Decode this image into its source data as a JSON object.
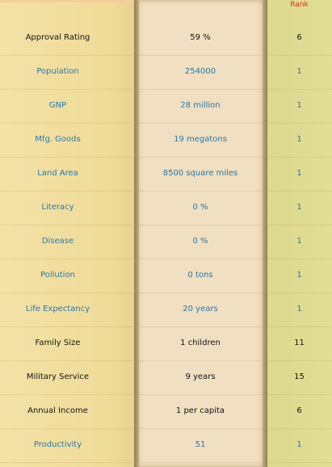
{
  "header": {
    "rank_label": "Rank"
  },
  "colors": {
    "label_column": "#efdb98",
    "value_column": "#f0dfc0",
    "rank_column": "#dcd98e",
    "highlight_text": "#141414",
    "normal_text": "#2a78a8",
    "rank_header": "#e02a10"
  },
  "rows": [
    {
      "label": "Approval Rating",
      "value": "59 %",
      "rank": "6",
      "style": "black"
    },
    {
      "label": "Population",
      "value": "254000",
      "rank": "1",
      "style": "blue"
    },
    {
      "label": "GNP",
      "value": "28 million",
      "rank": "1",
      "style": "blue"
    },
    {
      "label": "Mfg. Goods",
      "value": "19 megatons",
      "rank": "1",
      "style": "blue"
    },
    {
      "label": "Land Area",
      "value": "8500 square miles",
      "rank": "1",
      "style": "blue"
    },
    {
      "label": "Literacy",
      "value": "0 %",
      "rank": "1",
      "style": "blue"
    },
    {
      "label": "Disease",
      "value": "0 %",
      "rank": "1",
      "style": "blue"
    },
    {
      "label": "Pollution",
      "value": "0 tons",
      "rank": "1",
      "style": "blue"
    },
    {
      "label": "Life Expectancy",
      "value": "20 years",
      "rank": "1",
      "style": "blue"
    },
    {
      "label": "Family Size",
      "value": "1 children",
      "rank": "11",
      "style": "black"
    },
    {
      "label": "Military Service",
      "value": "9 years",
      "rank": "15",
      "style": "black"
    },
    {
      "label": "Annual Income",
      "value": "1 per capita",
      "rank": "6",
      "style": "black"
    },
    {
      "label": "Productivity",
      "value": "51",
      "rank": "1",
      "style": "blue"
    }
  ]
}
